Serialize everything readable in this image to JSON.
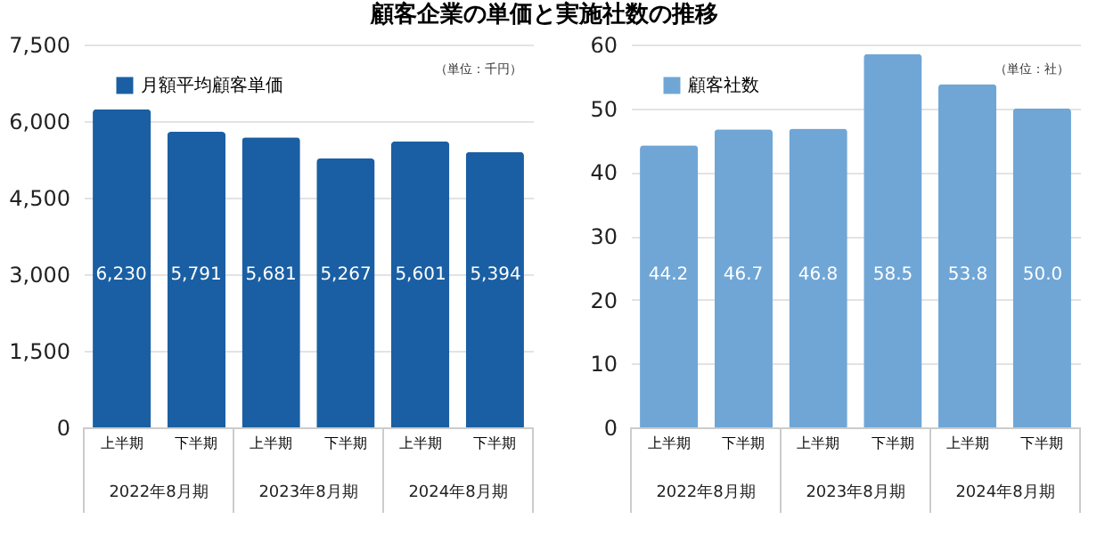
{
  "chart_data": [
    {
      "type": "bar",
      "title": "顧客企業の単価と実施社数の推移",
      "categories": [
        "上半期",
        "下半期",
        "上半期",
        "下半期",
        "上半期",
        "下半期"
      ],
      "series": [
        {
          "name": "月額平均顧客単価",
          "color": "#1a5fa3",
          "values": [
            6230,
            5791,
            5681,
            5267,
            5601,
            5394
          ]
        }
      ],
      "value_labels": [
        "6,230",
        "5,791",
        "5,681",
        "5,267",
        "5,601",
        "5,394"
      ],
      "ylim": [
        0,
        7500
      ],
      "yticks": [
        0,
        {
          "value": 1500,
          "label": "1,500"
        },
        {
          "value": 3000,
          "label": "3,000"
        },
        {
          "value": 4500,
          "label": "4,500"
        },
        {
          "value": 6000,
          "label": "6,000"
        },
        {
          "value": 7500,
          "label": "7,500"
        }
      ],
      "grid": "y",
      "legend": "top left",
      "annotations": [
        "（単位：千円）",
        "2022年8月期",
        "2023年8月期",
        "2024年8月期"
      ]
    },
    {
      "type": "bar",
      "categories": [
        "上半期",
        "下半期",
        "上半期",
        "下半期",
        "上半期",
        "下半期"
      ],
      "series": [
        {
          "name": "顧客社数",
          "color": "#6fa6d6",
          "values": [
            44.2,
            46.7,
            46.8,
            58.5,
            53.8,
            50.0
          ]
        }
      ],
      "value_labels": [
        "44.2",
        "46.7",
        "46.8",
        "58.5",
        "53.8",
        "50.0"
      ],
      "ylim": [
        0,
        60
      ],
      "yticks": [
        0,
        10,
        20,
        30,
        40,
        50,
        60
      ],
      "grid": "y",
      "legend": "top left",
      "annotations": [
        "（単位：社）",
        "2022年8月期",
        "2023年8月期",
        "2024年8月期"
      ]
    }
  ]
}
